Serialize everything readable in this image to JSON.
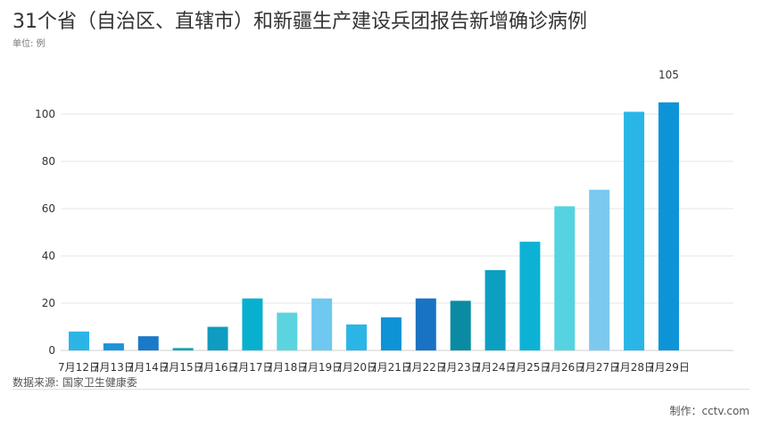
{
  "header": {
    "title": "31个省（自治区、直辖市）和新疆生产建设兵团报告新增确诊病例",
    "unit": "单位: 例"
  },
  "footer": {
    "source": "数据来源: 国家卫生健康委",
    "credit": "制作：cctv.com"
  },
  "colors": {
    "bars": [
      "#2bb5e6",
      "#1d93d9",
      "#1a7ac8",
      "#12a3b0",
      "#0f9cc0",
      "#07b0cf",
      "#5bd4df",
      "#6ec8f0",
      "#2bb5e6",
      "#0d93d6",
      "#1a72c4",
      "#0a8aa3",
      "#0c9fc2",
      "#0cb2d6",
      "#56d3e0",
      "#7cc9ef",
      "#29b6e7",
      "#0d94d8"
    ],
    "grid": "#e6e6e6"
  },
  "chart_data": {
    "type": "bar",
    "categories": [
      "7月12日",
      "7月13日",
      "7月14日",
      "7月15日",
      "7月16日",
      "7月17日",
      "7月18日",
      "7月19日",
      "7月20日",
      "7月21日",
      "7月22日",
      "7月23日",
      "7月24日",
      "7月25日",
      "7月26日",
      "7月27日",
      "7月28日",
      "7月29日"
    ],
    "values": [
      8,
      3,
      6,
      1,
      10,
      22,
      16,
      22,
      11,
      14,
      22,
      21,
      34,
      46,
      61,
      68,
      101,
      105
    ],
    "data_labels": {
      "7月29日": "105"
    },
    "yticks": [
      0,
      20,
      40,
      60,
      80,
      100
    ],
    "ylim": [
      0,
      110
    ],
    "grid": true,
    "legend": "none"
  }
}
